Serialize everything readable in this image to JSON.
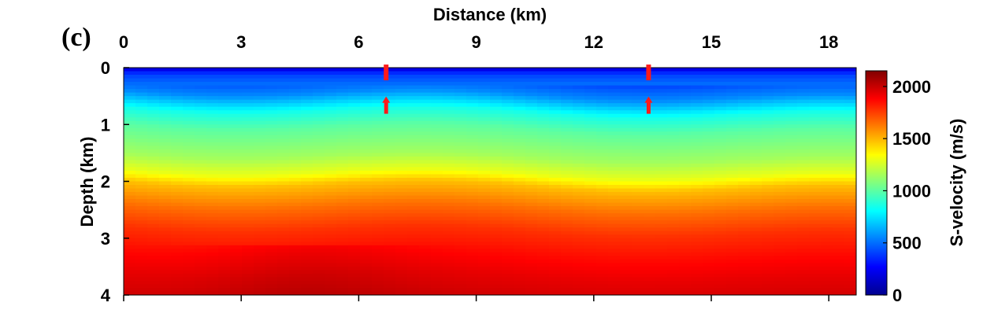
{
  "chart_data": {
    "type": "heatmap",
    "panel_label": "(c)",
    "xlabel": "Distance (km)",
    "ylabel": "Depth (km)",
    "colorbar_label": "S-velocity (m/s)",
    "x_axis_position": "top",
    "xlim": [
      0,
      18.7
    ],
    "ylim": [
      0,
      4
    ],
    "y_reversed": true,
    "x_ticks": [
      0,
      3,
      6,
      9,
      12,
      15,
      18
    ],
    "x_tick_labels": [
      "0",
      "3",
      "6",
      "9",
      "12",
      "15",
      "18"
    ],
    "y_ticks": [
      0,
      1,
      2,
      3,
      4
    ],
    "y_tick_labels": [
      "0",
      "1",
      "2",
      "3",
      "4"
    ],
    "colorbar": {
      "colormap": "jet",
      "clim": [
        0,
        2150
      ],
      "ticks": [
        0,
        500,
        1000,
        1500,
        2000
      ],
      "tick_labels": [
        "0",
        "500",
        "1000",
        "1500",
        "2000"
      ]
    },
    "velocity_profile": {
      "depth_km": [
        0,
        0.05,
        0.15,
        0.4,
        0.7,
        1.0,
        1.5,
        1.8,
        2.0,
        2.4,
        2.8,
        3.2,
        3.6,
        4.0
      ],
      "vs_mps": [
        60,
        300,
        420,
        560,
        850,
        1000,
        1150,
        1300,
        1480,
        1650,
        1780,
        1860,
        1930,
        1980
      ]
    },
    "markers": [
      {
        "type": "red-bar",
        "x_km": 6.7,
        "depth_km": 0.07
      },
      {
        "type": "red-arrow",
        "x_km": 6.7,
        "depth_km": 0.7
      },
      {
        "type": "red-bar",
        "x_km": 13.4,
        "depth_km": 0.07
      },
      {
        "type": "red-arrow",
        "x_km": 13.4,
        "depth_km": 0.7
      }
    ],
    "grid": false,
    "legend": "none"
  }
}
